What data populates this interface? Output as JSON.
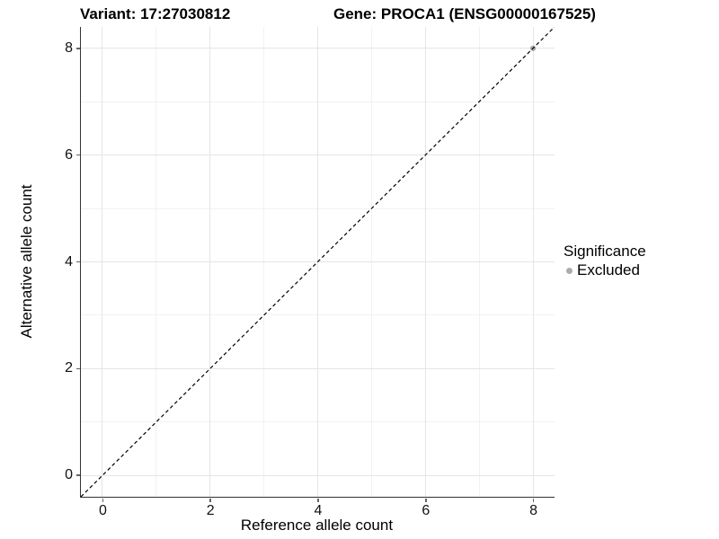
{
  "title": {
    "variant": "Variant: 17:27030812",
    "gene": "Gene: PROCA1 (ENSG00000167525)"
  },
  "chart_data": {
    "type": "scatter",
    "xlabel": "Reference allele count",
    "ylabel": "Alternative allele count",
    "xlim": [
      -0.4,
      8.4
    ],
    "ylim": [
      -0.4,
      8.4
    ],
    "x_major_ticks": [
      0,
      2,
      4,
      6,
      8
    ],
    "y_major_ticks": [
      0,
      2,
      4,
      6,
      8
    ],
    "x_minor_gridlines": [
      1,
      3,
      5,
      7
    ],
    "y_minor_gridlines": [
      1,
      3,
      5,
      7
    ],
    "grid": true,
    "reference_line": {
      "type": "identity",
      "style": "dashed",
      "color": "#000000",
      "x1": -0.4,
      "y1": -0.4,
      "x2": 8.4,
      "y2": 8.4
    },
    "series": [
      {
        "name": "Excluded",
        "color": "#ABABAB",
        "points": [
          {
            "x": 8,
            "y": 8
          }
        ]
      }
    ],
    "legend": {
      "title": "Significance",
      "position": "right",
      "entries": [
        {
          "label": "Excluded",
          "color": "#ABABAB",
          "marker": "dot"
        }
      ]
    }
  },
  "colors": {
    "background": "#FFFFFF",
    "major_grid": "#E5E5E5",
    "minor_grid": "#F2F2F2",
    "axis_line": "#333333",
    "tick_mark": "#666666",
    "text": "#000000"
  }
}
